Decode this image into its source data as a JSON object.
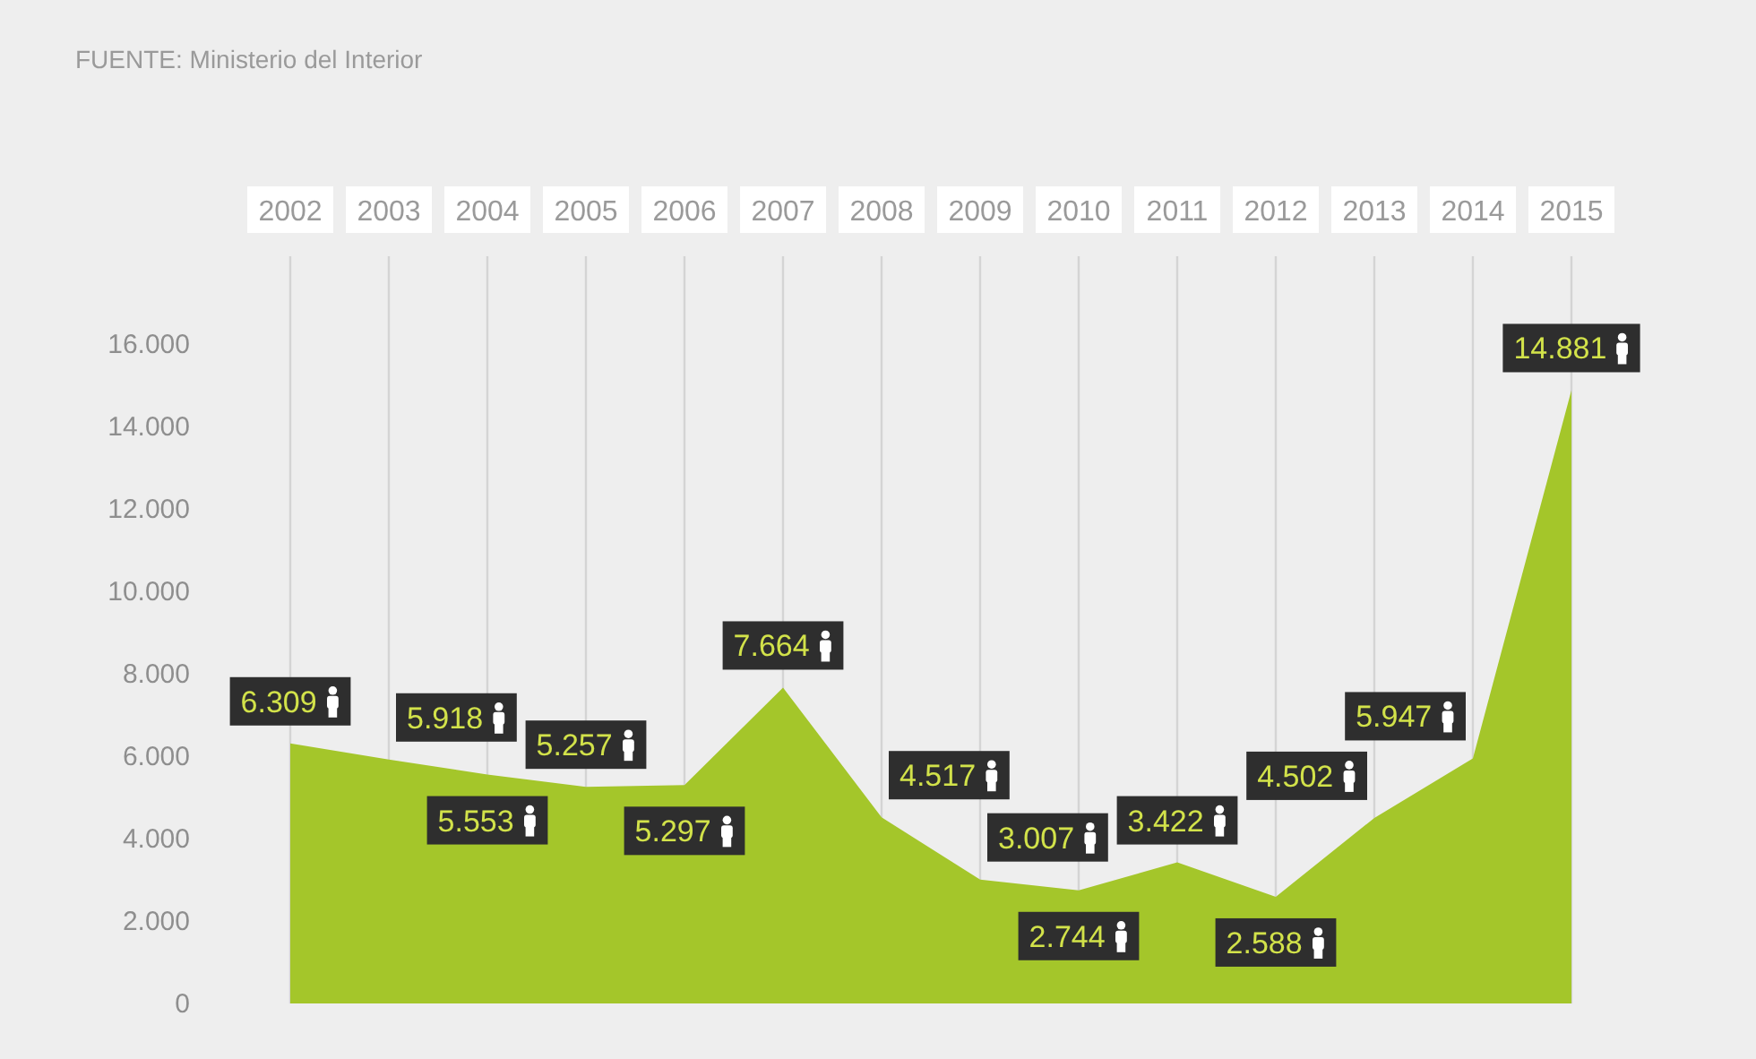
{
  "chart_data": {
    "type": "area",
    "categories": [
      "2002",
      "2003",
      "2004",
      "2005",
      "2006",
      "2007",
      "2008",
      "2009",
      "2010",
      "2011",
      "2012",
      "2013",
      "2014",
      "2015"
    ],
    "values": [
      6309,
      5918,
      5553,
      5257,
      5297,
      7664,
      4517,
      3007,
      2744,
      3422,
      2588,
      4502,
      5947,
      14881
    ],
    "value_labels": [
      "6.309",
      "5.918",
      "5.553",
      "5.257",
      "5.297",
      "7.664",
      "4.517",
      "3.007",
      "2.744",
      "3.422",
      "2.588",
      "4.502",
      "5.947",
      "14.881"
    ],
    "color": "#a4c62a",
    "ylim": [
      0,
      16000
    ],
    "yticks": [
      0,
      {
        "value": 2000,
        "label": "2.000"
      },
      {
        "value": 4000,
        "label": "4.000"
      },
      {
        "value": 6000,
        "label": "6.000"
      },
      {
        "value": 8000,
        "label": "8.000"
      },
      {
        "value": 10000,
        "label": "10.000"
      },
      {
        "value": 12000,
        "label": "12.000"
      },
      {
        "value": 14000,
        "label": "14.000"
      },
      {
        "value": 16000,
        "label": "16.000"
      }
    ],
    "grid": "x",
    "annotations": [
      "FUENTE: Ministerio del Interior"
    ]
  }
}
